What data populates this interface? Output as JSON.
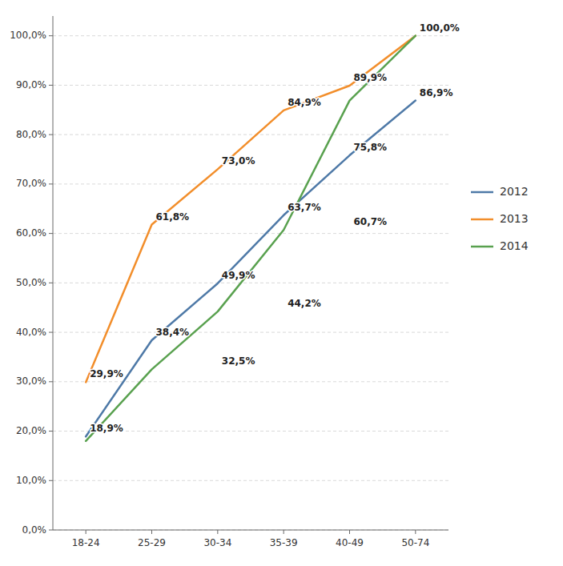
{
  "chart_data": {
    "type": "line",
    "categories": [
      "18-24",
      "25-29",
      "30-34",
      "35-39",
      "40-49",
      "50-74"
    ],
    "series": [
      {
        "name": "2012",
        "values": [
          18.9,
          38.4,
          49.9,
          63.7,
          75.8,
          86.9
        ]
      },
      {
        "name": "2013",
        "values": [
          29.9,
          61.8,
          73.0,
          84.9,
          89.9,
          100.0
        ]
      },
      {
        "name": "2014",
        "values": [
          18.0,
          32.5,
          44.2,
          60.7,
          86.9,
          100.0
        ]
      }
    ],
    "ylim": [
      0,
      104
    ],
    "yticks": [
      {
        "value": 0,
        "label": "0,0%"
      },
      {
        "value": 10,
        "label": "10,0%"
      },
      {
        "value": 20,
        "label": "20,0%"
      },
      {
        "value": 30,
        "label": "30,0%"
      },
      {
        "value": 40,
        "label": "40,0%"
      },
      {
        "value": 50,
        "label": "50,0%"
      },
      {
        "value": 60,
        "label": "60,0%"
      },
      {
        "value": 70,
        "label": "70,0%"
      },
      {
        "value": 80,
        "label": "80,0%"
      },
      {
        "value": 90,
        "label": "90,0%"
      },
      {
        "value": 100,
        "label": "100,0%"
      }
    ],
    "grid": true,
    "legend": "right",
    "annotations": [
      {
        "text": "18,9%",
        "x": "18-24",
        "y": 18.9
      },
      {
        "text": "38,4%",
        "x": "25-29",
        "y": 38.4
      },
      {
        "text": "49,9%",
        "x": "30-34",
        "y": 49.9
      },
      {
        "text": "63,7%",
        "x": "35-39",
        "y": 63.7
      },
      {
        "text": "75,8%",
        "x": "40-49",
        "y": 75.8
      },
      {
        "text": "86,9%",
        "x": "50-74",
        "y": 86.9
      },
      {
        "text": "29,9%",
        "x": "18-24",
        "y": 29.9
      },
      {
        "text": "61,8%",
        "x": "25-29",
        "y": 61.8
      },
      {
        "text": "73,0%",
        "x": "30-34",
        "y": 73.0
      },
      {
        "text": "84,9%",
        "x": "35-39",
        "y": 84.9
      },
      {
        "text": "89,9%",
        "x": "40-49",
        "y": 89.9
      },
      {
        "text": "100,0%",
        "x": "50-74",
        "y": 100.0
      },
      {
        "text": "32,5%",
        "x": "30-34",
        "y": 32.5
      },
      {
        "text": "44,2%",
        "x": "35-39",
        "y": 44.2
      },
      {
        "text": "60,7%",
        "x": "40-49",
        "y": 60.7
      }
    ]
  }
}
